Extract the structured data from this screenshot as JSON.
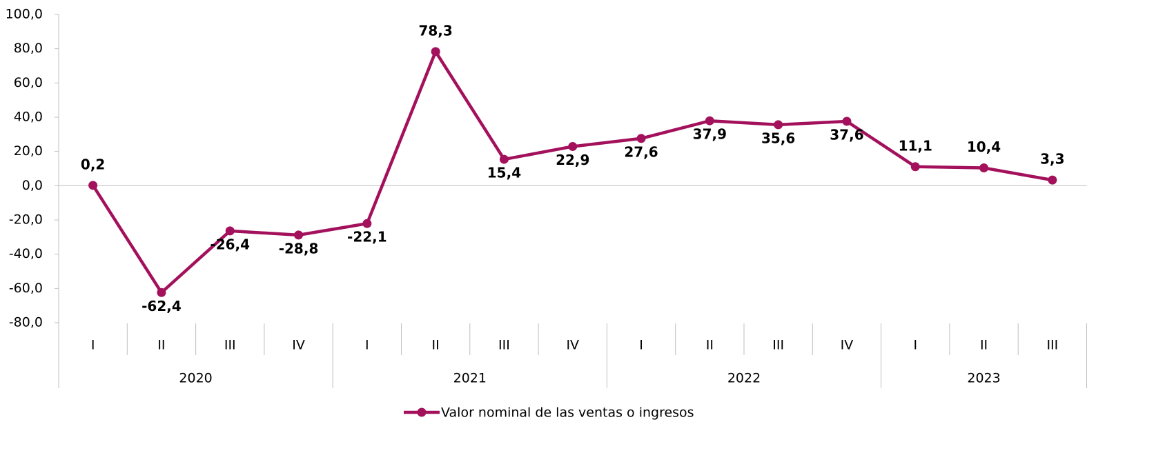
{
  "chart_data": {
    "type": "line",
    "groups": [
      {
        "label": "2020",
        "categories": [
          "I",
          "II",
          "III",
          "IV"
        ]
      },
      {
        "label": "2021",
        "categories": [
          "I",
          "II",
          "III",
          "IV"
        ]
      },
      {
        "label": "2022",
        "categories": [
          "I",
          "II",
          "III",
          "IV"
        ]
      },
      {
        "label": "2023",
        "categories": [
          "I",
          "II",
          "III"
        ]
      }
    ],
    "series": [
      {
        "name": "Valor nominal de las ventas o ingresos",
        "color": "#a3115c",
        "values": [
          0.2,
          -62.4,
          -26.4,
          -28.8,
          -22.1,
          78.3,
          15.4,
          22.9,
          27.6,
          37.9,
          35.6,
          37.6,
          11.1,
          10.4,
          3.3
        ],
        "value_labels": [
          "0,2",
          "-62,4",
          "-26,4",
          "-28,8",
          "-22,1",
          "78,3",
          "15,4",
          "22,9",
          "27,6",
          "37,9",
          "35,6",
          "37,6",
          "11,1",
          "10,4",
          "3,3"
        ]
      }
    ],
    "ylim": [
      -80,
      100
    ],
    "yticks": [
      {
        "value": -80,
        "label": "-80,0"
      },
      {
        "value": -60,
        "label": "-60,0"
      },
      {
        "value": -40,
        "label": "-40,0"
      },
      {
        "value": -20,
        "label": "-20,0"
      },
      {
        "value": 0,
        "label": "0,0"
      },
      {
        "value": 20,
        "label": "20,0"
      },
      {
        "value": 40,
        "label": "40,0"
      },
      {
        "value": 60,
        "label": "60,0"
      },
      {
        "value": 80,
        "label": "80,0"
      },
      {
        "value": 100,
        "label": "100,0"
      }
    ],
    "legend": "bottom"
  }
}
